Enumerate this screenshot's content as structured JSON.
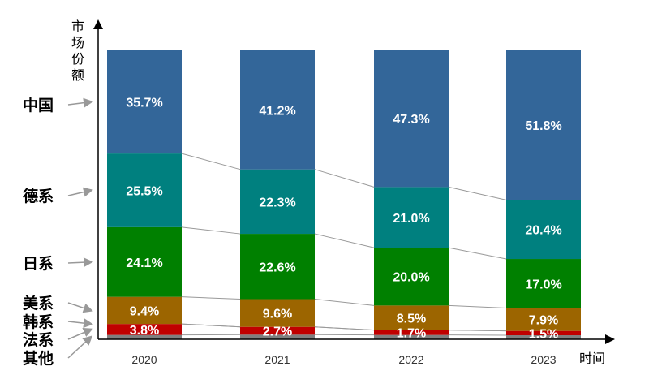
{
  "chart_data": {
    "type": "bar",
    "stacked": true,
    "normalized": true,
    "xlabel": "时间",
    "ylabel": "市场份额",
    "categories": [
      "2020",
      "2021",
      "2022",
      "2023"
    ],
    "series": [
      {
        "name": "其他",
        "values": [
          1.5,
          1.6,
          1.5,
          1.4
        ],
        "labels": [
          "",
          "",
          "",
          ""
        ],
        "color": "#7f7f7f"
      },
      {
        "name": "法系",
        "values": [
          3.8,
          2.7,
          1.7,
          1.5
        ],
        "labels": [
          "3.8%",
          "2.7%",
          "1.7%",
          "1.5%"
        ],
        "color": "#c00000"
      },
      {
        "name": "韩系",
        "values": [
          0,
          0,
          0,
          0
        ],
        "labels": [
          "",
          "",
          "",
          ""
        ],
        "color": "#c00000"
      },
      {
        "name": "美系",
        "values": [
          9.4,
          9.6,
          8.5,
          7.9
        ],
        "labels": [
          "9.4%",
          "9.6%",
          "8.5%",
          "7.9%"
        ],
        "color": "#9c6500"
      },
      {
        "name": "日系",
        "values": [
          24.1,
          22.6,
          20.0,
          17.0
        ],
        "labels": [
          "24.1%",
          "22.6%",
          "20.0%",
          "17.0%"
        ],
        "color": "#008000"
      },
      {
        "name": "德系",
        "values": [
          25.5,
          22.3,
          21.0,
          20.4
        ],
        "labels": [
          "25.5%",
          "22.3%",
          "21.0%",
          "20.4%"
        ],
        "color": "#00807f"
      },
      {
        "name": "中国",
        "values": [
          35.7,
          41.2,
          47.3,
          51.8
        ],
        "labels": [
          "35.7%",
          "41.2%",
          "47.3%",
          "51.8%"
        ],
        "color": "#336699"
      }
    ],
    "legend": "left",
    "grid": false
  }
}
